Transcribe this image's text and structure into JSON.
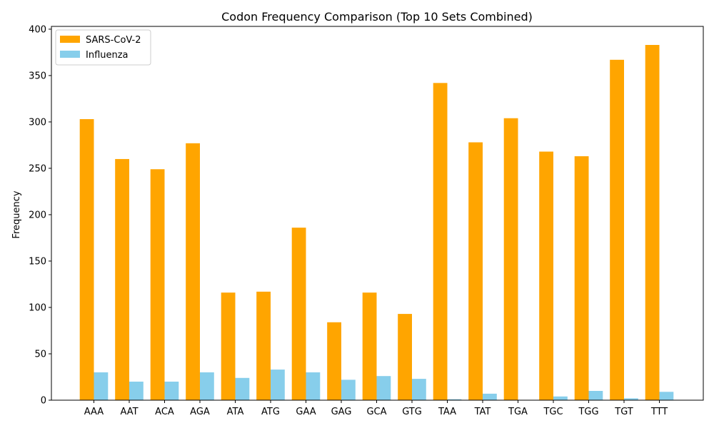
{
  "chart_data": {
    "type": "bar",
    "title": "Codon Frequency Comparison (Top 10 Sets Combined)",
    "xlabel": "",
    "ylabel": "Frequency",
    "ylim": [
      0,
      403
    ],
    "yticks": [
      0,
      50,
      100,
      150,
      200,
      250,
      300,
      350,
      400
    ],
    "categories": [
      "AAA",
      "AAT",
      "ACA",
      "AGA",
      "ATA",
      "ATG",
      "GAA",
      "GAG",
      "GCA",
      "GTG",
      "TAA",
      "TAT",
      "TGA",
      "TGC",
      "TGG",
      "TGT",
      "TTT"
    ],
    "series": [
      {
        "name": "SARS-CoV-2",
        "color": "#ffa500",
        "values": [
          303,
          260,
          249,
          277,
          116,
          117,
          186,
          84,
          116,
          93,
          342,
          278,
          304,
          268,
          263,
          367,
          383
        ]
      },
      {
        "name": "Influenza",
        "color": "#87ceeb",
        "values": [
          30,
          20,
          20,
          30,
          24,
          33,
          30,
          22,
          26,
          23,
          1,
          7,
          0,
          4,
          10,
          2,
          9
        ]
      }
    ],
    "legend_position": "top-left",
    "grid": false
  }
}
